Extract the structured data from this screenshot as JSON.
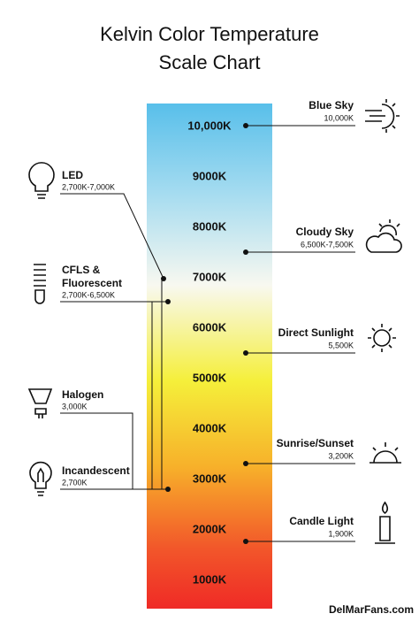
{
  "title_lines": [
    "Kelvin Color Temperature",
    "Scale Chart"
  ],
  "scale_labels": [
    "10,000K",
    "9000K",
    "8000K",
    "7000K",
    "6000K",
    "5000K",
    "4000K",
    "3000K",
    "2000K",
    "1000K"
  ],
  "right_items": [
    {
      "label": "Blue Sky",
      "detail": "10,000K"
    },
    {
      "label": "Cloudy Sky",
      "detail": "6,500K-7,500K"
    },
    {
      "label": "Direct Sunlight",
      "detail": "5,500K"
    },
    {
      "label": "Sunrise/Sunset",
      "detail": "3,200K"
    },
    {
      "label": "Candle Light",
      "detail": "1,900K"
    }
  ],
  "left_items": [
    {
      "label_lines": [
        "LED"
      ],
      "detail": "2,700K-7,000K"
    },
    {
      "label_lines": [
        "CFLS &",
        "Fluorescent"
      ],
      "detail": "2,700K-6,500K"
    },
    {
      "label_lines": [
        "Halogen"
      ],
      "detail": "3,000K"
    },
    {
      "label_lines": [
        "Incandescent"
      ],
      "detail": "2,700K"
    }
  ],
  "footer": "DelMarFans.com"
}
